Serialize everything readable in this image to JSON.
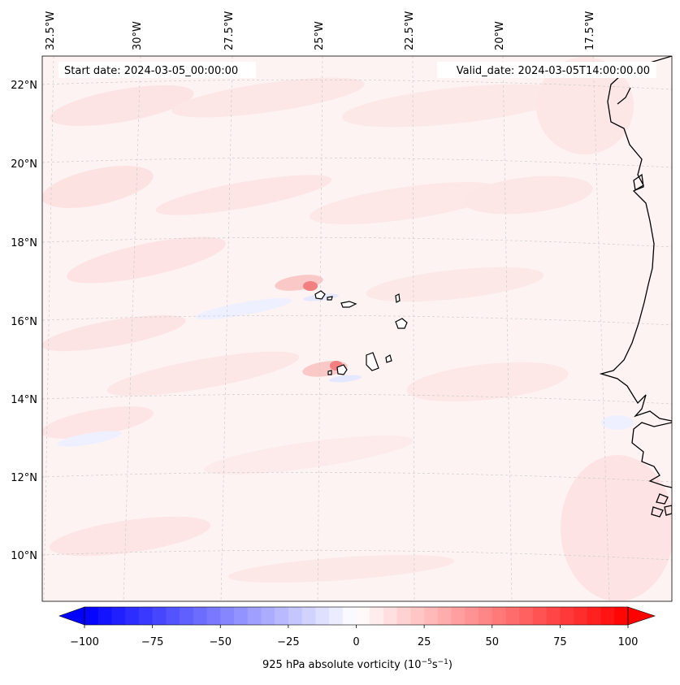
{
  "header": {
    "start_date": "Start date: 2024-03-05_00:00:00",
    "valid_date": "Valid_date: 2024-03-05T14:00:00.00"
  },
  "lon_labels": [
    "32.5°W",
    "30°W",
    "27.5°W",
    "25°W",
    "22.5°W",
    "20°W",
    "17.5°W"
  ],
  "lat_labels": [
    "22°N",
    "20°N",
    "18°N",
    "16°N",
    "14°N",
    "12°N",
    "10°N"
  ],
  "colorbar": {
    "label_main": "925 hPa absolute vorticity (10",
    "label_exp1": "−5",
    "label_mid": "s",
    "label_exp2": "−1",
    "label_end": ")",
    "ticks": [
      "−100",
      "−75",
      "−50",
      "−25",
      "0",
      "25",
      "50",
      "75",
      "100"
    ],
    "min": -100,
    "max": 100,
    "levels": 41,
    "low_color": "#0000ff",
    "mid_color": "#ffffff",
    "high_color": "#ff0000"
  },
  "colors": {
    "field_background": "#fef3f3",
    "coast": "#000000",
    "grid": "#cccccc"
  }
}
